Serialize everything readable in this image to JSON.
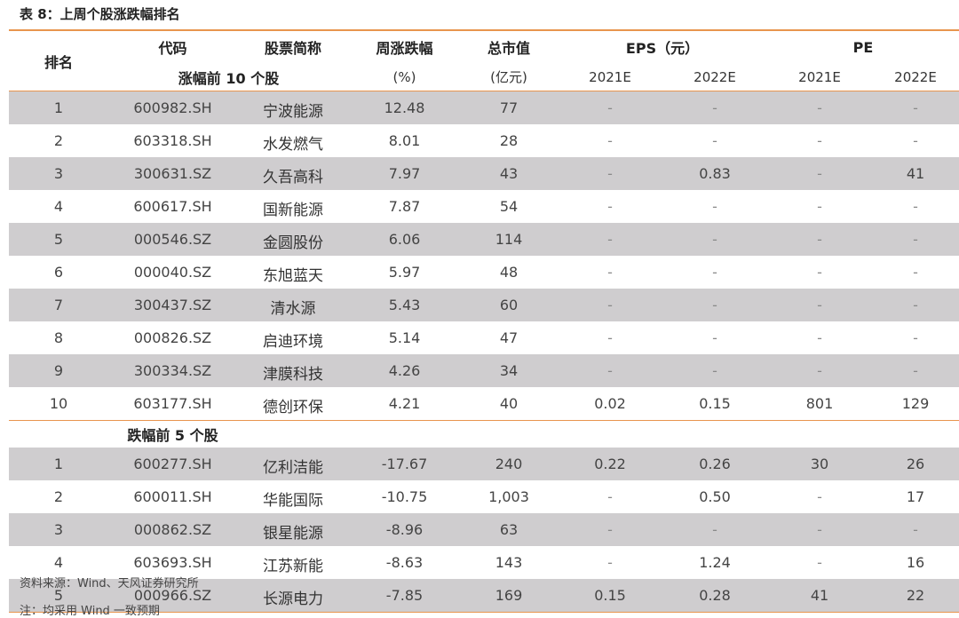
{
  "caption": "表 8：上周个股涨跌幅排名",
  "headers": {
    "rank": "排名",
    "code": "代码",
    "name": "股票简称",
    "change": "周涨跌幅",
    "change_unit": "(%)",
    "cap": "总市值",
    "cap_unit": "(亿元)",
    "eps": "EPS（元）",
    "pe": "PE",
    "y2021": "2021E",
    "y2022": "2022E",
    "gainers_title": "涨幅前 10 个股",
    "losers_title": "跌幅前 5 个股"
  },
  "gainers": [
    {
      "rank": "1",
      "code": "600982.SH",
      "name": "宁波能源",
      "change": "12.48",
      "cap": "77",
      "eps2021": "-",
      "eps2022": "-",
      "pe2021": "-",
      "pe2022": "-"
    },
    {
      "rank": "2",
      "code": "603318.SH",
      "name": "水发燃气",
      "change": "8.01",
      "cap": "28",
      "eps2021": "-",
      "eps2022": "-",
      "pe2021": "-",
      "pe2022": "-"
    },
    {
      "rank": "3",
      "code": "300631.SZ",
      "name": "久吾高科",
      "change": "7.97",
      "cap": "43",
      "eps2021": "-",
      "eps2022": "0.83",
      "pe2021": "-",
      "pe2022": "41"
    },
    {
      "rank": "4",
      "code": "600617.SH",
      "name": "国新能源",
      "change": "7.87",
      "cap": "54",
      "eps2021": "-",
      "eps2022": "-",
      "pe2021": "-",
      "pe2022": "-"
    },
    {
      "rank": "5",
      "code": "000546.SZ",
      "name": "金圆股份",
      "change": "6.06",
      "cap": "114",
      "eps2021": "-",
      "eps2022": "-",
      "pe2021": "-",
      "pe2022": "-"
    },
    {
      "rank": "6",
      "code": "000040.SZ",
      "name": "东旭蓝天",
      "change": "5.97",
      "cap": "48",
      "eps2021": "-",
      "eps2022": "-",
      "pe2021": "-",
      "pe2022": "-"
    },
    {
      "rank": "7",
      "code": "300437.SZ",
      "name": "清水源",
      "change": "5.43",
      "cap": "60",
      "eps2021": "-",
      "eps2022": "-",
      "pe2021": "-",
      "pe2022": "-"
    },
    {
      "rank": "8",
      "code": "000826.SZ",
      "name": "启迪环境",
      "change": "5.14",
      "cap": "47",
      "eps2021": "-",
      "eps2022": "-",
      "pe2021": "-",
      "pe2022": "-"
    },
    {
      "rank": "9",
      "code": "300334.SZ",
      "name": "津膜科技",
      "change": "4.26",
      "cap": "34",
      "eps2021": "-",
      "eps2022": "-",
      "pe2021": "-",
      "pe2022": "-"
    },
    {
      "rank": "10",
      "code": "603177.SH",
      "name": "德创环保",
      "change": "4.21",
      "cap": "40",
      "eps2021": "0.02",
      "eps2022": "0.15",
      "pe2021": "801",
      "pe2022": "129"
    }
  ],
  "losers": [
    {
      "rank": "1",
      "code": "600277.SH",
      "name": "亿利洁能",
      "change": "-17.67",
      "cap": "240",
      "eps2021": "0.22",
      "eps2022": "0.26",
      "pe2021": "30",
      "pe2022": "26"
    },
    {
      "rank": "2",
      "code": "600011.SH",
      "name": "华能国际",
      "change": "-10.75",
      "cap": "1,003",
      "eps2021": "-",
      "eps2022": "0.50",
      "pe2021": "-",
      "pe2022": "17"
    },
    {
      "rank": "3",
      "code": "000862.SZ",
      "name": "银星能源",
      "change": "-8.96",
      "cap": "63",
      "eps2021": "-",
      "eps2022": "-",
      "pe2021": "-",
      "pe2022": "-"
    },
    {
      "rank": "4",
      "code": "603693.SH",
      "name": "江苏新能",
      "change": "-8.63",
      "cap": "143",
      "eps2021": "-",
      "eps2022": "1.24",
      "pe2021": "-",
      "pe2022": "16"
    },
    {
      "rank": "5",
      "code": "000966.SZ",
      "name": "长源电力",
      "change": "-7.85",
      "cap": "169",
      "eps2021": "0.15",
      "eps2022": "0.28",
      "pe2021": "41",
      "pe2022": "22"
    }
  ],
  "source": "资料来源：Wind、天风证券研究所",
  "note": "注：均采用 Wind 一致预期",
  "colors": {
    "accent_line": "#e8954e",
    "row_shade": "#cfcdcf"
  }
}
